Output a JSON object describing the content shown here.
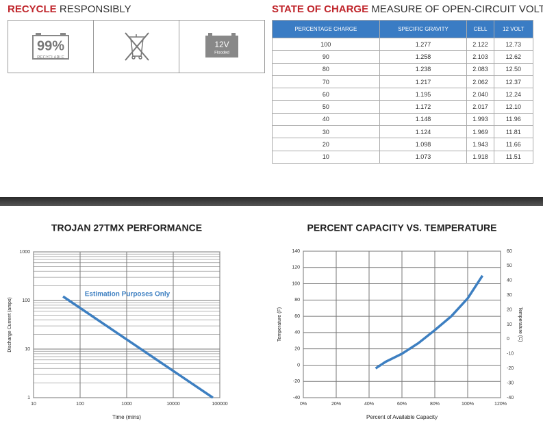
{
  "recycle": {
    "title_bold": "RECYCLE",
    "title_rest": "RESPONSIBLY",
    "icons": {
      "percent": "99%",
      "percent_caption": "RECYCLABLE",
      "battery_voltage": "12V",
      "battery_type": "Flooded"
    }
  },
  "state_of_charge": {
    "title_bold": "STATE OF CHARGE",
    "title_rest": "MEASURE OF OPEN-CIRCUIT VOLTAGE",
    "table": {
      "header": [
        "PERCENTAGE CHARGE",
        "SPECIFIC GRAVITY",
        "CELL",
        "12 VOLT"
      ],
      "rows": [
        [
          "100",
          "1.277",
          "2.122",
          "12.73"
        ],
        [
          "90",
          "1.258",
          "2.103",
          "12.62"
        ],
        [
          "80",
          "1.238",
          "2.083",
          "12.50"
        ],
        [
          "70",
          "1.217",
          "2.062",
          "12.37"
        ],
        [
          "60",
          "1.195",
          "2.040",
          "12.24"
        ],
        [
          "50",
          "1.172",
          "2.017",
          "12.10"
        ],
        [
          "40",
          "1.148",
          "1.993",
          "11.96"
        ],
        [
          "30",
          "1.124",
          "1.969",
          "11.81"
        ],
        [
          "20",
          "1.098",
          "1.943",
          "11.66"
        ],
        [
          "10",
          "1.073",
          "1.918",
          "11.51"
        ]
      ]
    }
  },
  "chart_data": [
    {
      "type": "line",
      "title": "TROJAN 27TMX PERFORMANCE",
      "xlabel": "Time (mins)",
      "ylabel": "Discharge Current (amps)",
      "annotation": "Estimation Purposes Only",
      "x": [
        43,
        71000
      ],
      "values": [
        121,
        1
      ],
      "color": "#3d7fc1",
      "xscale": "log",
      "yscale": "log",
      "xlim": [
        10,
        100000
      ],
      "xticks": [
        10,
        100,
        1000,
        10000,
        100000
      ],
      "ylim": [
        1,
        1000
      ],
      "yticks": [
        1,
        10,
        100,
        1000
      ],
      "yminorticks": [
        2,
        3,
        4,
        5,
        6,
        7,
        8,
        9,
        20,
        30,
        40,
        50,
        60,
        70,
        80,
        90,
        200,
        300,
        400,
        500,
        600,
        700,
        800,
        900
      ],
      "grid": true
    },
    {
      "type": "line",
      "title": "PERCENT CAPACITY VS. TEMPERATURE",
      "xlabel": "Percent of Available Capacity",
      "ylabel": "Temperature (F)",
      "y2label": "Temperature (C)",
      "x": [
        44,
        50,
        60,
        70,
        80,
        90,
        100,
        109
      ],
      "values": [
        -4,
        4,
        14,
        27,
        43,
        60,
        82,
        110
      ],
      "color": "#3d7fc1",
      "xlim": [
        0,
        120
      ],
      "xticks": [
        {
          "value": 0,
          "label": "0%"
        },
        {
          "value": 20,
          "label": "20%"
        },
        {
          "value": 40,
          "label": "40%"
        },
        {
          "value": 60,
          "label": "60%"
        },
        {
          "value": 80,
          "label": "80%"
        },
        {
          "value": 100,
          "label": "100%"
        },
        {
          "value": 120,
          "label": "120%"
        }
      ],
      "ylim": [
        -40,
        140
      ],
      "yticks": [
        -40,
        -20,
        0,
        20,
        40,
        60,
        80,
        100,
        120,
        140
      ],
      "y2lim": [
        -40,
        60
      ],
      "y2ticks": [
        -40,
        -30,
        -20,
        -10,
        0,
        10,
        20,
        30,
        40,
        50,
        60
      ],
      "grid": true
    }
  ]
}
